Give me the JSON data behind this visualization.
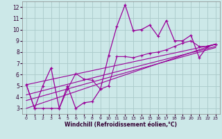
{
  "xlabel": "Windchill (Refroidissement éolien,°C)",
  "xlim": [
    -0.5,
    23.5
  ],
  "ylim": [
    2.5,
    12.5
  ],
  "yticks": [
    3,
    4,
    5,
    6,
    7,
    8,
    9,
    10,
    11,
    12
  ],
  "xticks": [
    0,
    1,
    2,
    3,
    4,
    5,
    6,
    7,
    8,
    9,
    10,
    11,
    12,
    13,
    14,
    15,
    16,
    17,
    18,
    19,
    20,
    21,
    22,
    23
  ],
  "background_color": "#cce8e8",
  "grid_color": "#aacaca",
  "line_color": "#990099",
  "series1_x": [
    0,
    1,
    2,
    3,
    4,
    5,
    6,
    7,
    8,
    9,
    10,
    11,
    12,
    13,
    14,
    15,
    16,
    17,
    18,
    19,
    20,
    21,
    22,
    23
  ],
  "series1_y": [
    5.1,
    3.0,
    5.0,
    6.6,
    3.0,
    5.0,
    3.0,
    3.5,
    3.6,
    4.7,
    7.7,
    10.3,
    12.2,
    9.9,
    10.0,
    10.4,
    9.4,
    10.8,
    9.0,
    9.0,
    9.5,
    7.5,
    8.5,
    8.7
  ],
  "series2_x": [
    0,
    1,
    2,
    3,
    4,
    5,
    6,
    7,
    8,
    9,
    10,
    11,
    12,
    13,
    14,
    15,
    16,
    17,
    18,
    19,
    20,
    21,
    22,
    23
  ],
  "series2_y": [
    5.1,
    3.0,
    3.0,
    3.0,
    3.0,
    4.7,
    6.1,
    5.6,
    5.5,
    4.7,
    5.0,
    7.6,
    7.6,
    7.5,
    7.7,
    7.9,
    8.0,
    8.2,
    8.5,
    8.8,
    9.0,
    8.5,
    8.5,
    8.7
  ],
  "trend1_x": [
    0,
    23
  ],
  "trend1_y": [
    5.1,
    8.7
  ],
  "trend2_x": [
    0,
    23
  ],
  "trend2_y": [
    3.0,
    8.7
  ],
  "trend3_x": [
    0,
    23
  ],
  "trend3_y": [
    3.7,
    8.4
  ],
  "trend4_x": [
    0,
    23
  ],
  "trend4_y": [
    4.2,
    8.5
  ]
}
